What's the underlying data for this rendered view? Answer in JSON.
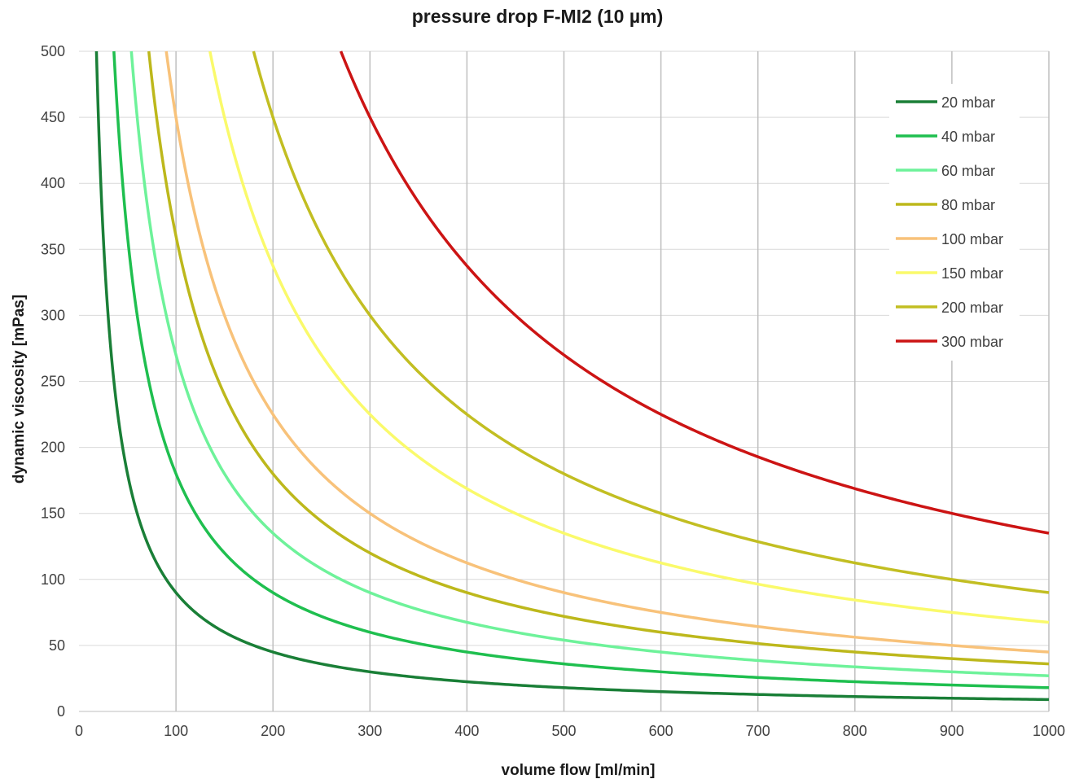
{
  "chart_data": {
    "type": "line",
    "title": "pressure drop F-MI2 (10 µm)",
    "xlabel": "volume flow [ml/min]",
    "ylabel": "dynamic viscosity [mPas]",
    "xlim": [
      0,
      1000
    ],
    "ylim": [
      0,
      500
    ],
    "x_ticks": [
      0,
      100,
      200,
      300,
      400,
      500,
      600,
      700,
      800,
      900,
      1000
    ],
    "y_ticks": [
      0,
      50,
      100,
      150,
      200,
      250,
      300,
      350,
      400,
      450,
      500
    ],
    "grid": "vertical and horizontal",
    "legend_position": "top-right",
    "curve_model": "viscosity = k / volume_flow",
    "series": [
      {
        "name": "20 mbar",
        "color": "#1a7f37",
        "k": 9000,
        "x": [
          18,
          50,
          100,
          200,
          300,
          400,
          500,
          600,
          700,
          800,
          900,
          1000
        ],
        "values": [
          500,
          180,
          90,
          45,
          30,
          22.5,
          18,
          15,
          12.9,
          11.3,
          10,
          9
        ]
      },
      {
        "name": "40 mbar",
        "color": "#1fbf4f",
        "k": 18000,
        "x": [
          36,
          50,
          100,
          200,
          300,
          400,
          500,
          600,
          700,
          800,
          900,
          1000
        ],
        "values": [
          500,
          360,
          180,
          90,
          60,
          45,
          36,
          30,
          25.7,
          22.5,
          20,
          18
        ]
      },
      {
        "name": "60 mbar",
        "color": "#6ef29a",
        "k": 27000,
        "x": [
          54,
          100,
          200,
          300,
          400,
          500,
          600,
          700,
          800,
          900,
          1000
        ],
        "values": [
          500,
          270,
          135,
          90,
          67.5,
          54,
          45,
          38.6,
          33.8,
          30,
          27
        ]
      },
      {
        "name": "80 mbar",
        "color": "#bdb81c",
        "k": 36000,
        "x": [
          72,
          100,
          200,
          300,
          400,
          500,
          600,
          700,
          800,
          900,
          1000
        ],
        "values": [
          500,
          360,
          180,
          120,
          90,
          72,
          60,
          51.4,
          45,
          40,
          36
        ]
      },
      {
        "name": "100 mbar",
        "color": "#f8c27a",
        "k": 45000,
        "x": [
          90,
          100,
          200,
          300,
          400,
          500,
          600,
          700,
          800,
          900,
          1000
        ],
        "values": [
          500,
          450,
          225,
          150,
          112.5,
          90,
          75,
          64.3,
          56.3,
          50,
          45
        ]
      },
      {
        "name": "150 mbar",
        "color": "#fafa6b",
        "k": 67500,
        "x": [
          135,
          200,
          300,
          400,
          500,
          600,
          700,
          800,
          900,
          1000
        ],
        "values": [
          500,
          337.5,
          225,
          168.8,
          135,
          112.5,
          96.4,
          84.4,
          75,
          67.5
        ]
      },
      {
        "name": "200 mbar",
        "color": "#c2be22",
        "k": 90000,
        "x": [
          180,
          200,
          300,
          400,
          500,
          600,
          700,
          800,
          900,
          1000
        ],
        "values": [
          500,
          450,
          300,
          225,
          180,
          150,
          128.6,
          112.5,
          100,
          90
        ]
      },
      {
        "name": "300 mbar",
        "color": "#cc1414",
        "k": 135000,
        "x": [
          270,
          300,
          400,
          500,
          600,
          700,
          800,
          900,
          1000
        ],
        "values": [
          500,
          450,
          337.5,
          270,
          225,
          192.9,
          168.8,
          150,
          135
        ]
      }
    ]
  }
}
